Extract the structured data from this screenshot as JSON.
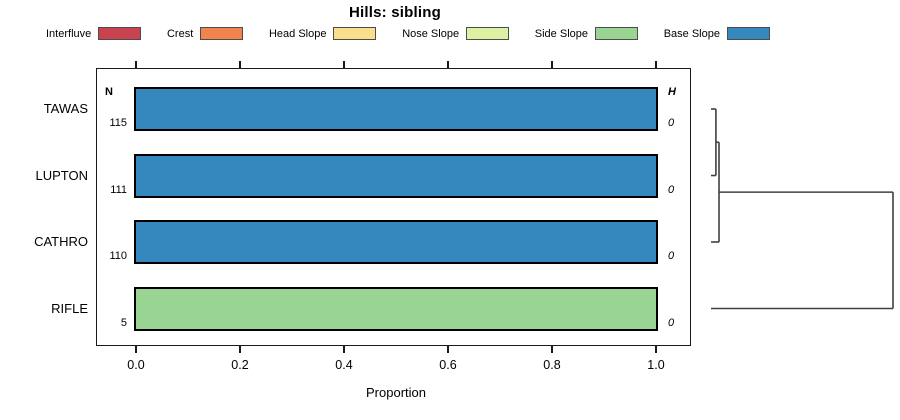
{
  "title": "Hills: sibling",
  "legend": {
    "items": [
      {
        "label": "Interfluve",
        "color": "#C8434F"
      },
      {
        "label": "Crest",
        "color": "#F2854F"
      },
      {
        "label": "Head Slope",
        "color": "#FBDE8D"
      },
      {
        "label": "Nose Slope",
        "color": "#DCF1A1"
      },
      {
        "label": "Side Slope",
        "color": "#99D493"
      },
      {
        "label": "Base Slope",
        "color": "#3588BE"
      }
    ]
  },
  "chart_data": {
    "type": "bar",
    "orientation": "horizontal",
    "title": "Hills: sibling",
    "xlabel": "Proportion",
    "xlim": [
      0.0,
      1.0
    ],
    "x_tick_labels": [
      "0.0",
      "0.2",
      "0.4",
      "0.6",
      "0.8",
      "1.0"
    ],
    "x_tick_values": [
      0.0,
      0.2,
      0.4,
      0.6,
      0.8,
      1.0
    ],
    "grid": false,
    "columns": {
      "n_header": "N",
      "h_header": "H"
    },
    "categories": [
      "TAWAS",
      "LUPTON",
      "CATHRO",
      "RIFLE"
    ],
    "rows": [
      {
        "category": "TAWAS",
        "n": "115",
        "proportion": 1.0,
        "segment": "Base Slope",
        "h": "0"
      },
      {
        "category": "LUPTON",
        "n": "111",
        "proportion": 1.0,
        "segment": "Base Slope",
        "h": "0"
      },
      {
        "category": "CATHRO",
        "n": "110",
        "proportion": 1.0,
        "segment": "Base Slope",
        "h": "0"
      },
      {
        "category": "RIFLE",
        "n": "5",
        "proportion": 1.0,
        "segment": "Side Slope",
        "h": "0"
      }
    ]
  },
  "dendrogram": {
    "leaves": [
      "TAWAS",
      "LUPTON",
      "CATHRO",
      "RIFLE"
    ],
    "merges": [
      {
        "left": "TAWAS",
        "right": "LUPTON",
        "relative_height": 0.027
      },
      {
        "left": "cluster0",
        "right": "CATHRO",
        "relative_height": 0.044
      },
      {
        "left": "cluster1",
        "right": "RIFLE",
        "relative_height": 1.0
      }
    ],
    "line_color": "#404040"
  }
}
